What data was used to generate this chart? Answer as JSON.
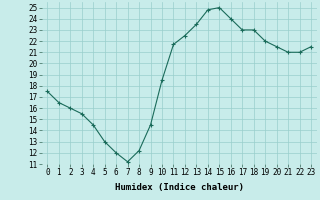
{
  "x": [
    0,
    1,
    2,
    3,
    4,
    5,
    6,
    7,
    8,
    9,
    10,
    11,
    12,
    13,
    14,
    15,
    16,
    17,
    18,
    19,
    20,
    21,
    22,
    23
  ],
  "y": [
    17.5,
    16.5,
    16.0,
    15.5,
    14.5,
    13.0,
    12.0,
    11.2,
    12.2,
    14.5,
    18.5,
    21.7,
    22.5,
    23.5,
    24.8,
    25.0,
    24.0,
    23.0,
    23.0,
    22.0,
    21.5,
    21.0,
    21.0,
    21.5
  ],
  "line_color": "#1a6b5a",
  "marker": "+",
  "bg_color": "#c8ecea",
  "grid_color": "#9acfcc",
  "xlabel": "Humidex (Indice chaleur)",
  "xlim": [
    -0.5,
    23.5
  ],
  "ylim": [
    11,
    25.5
  ],
  "yticks": [
    11,
    12,
    13,
    14,
    15,
    16,
    17,
    18,
    19,
    20,
    21,
    22,
    23,
    24,
    25
  ],
  "xticks": [
    0,
    1,
    2,
    3,
    4,
    5,
    6,
    7,
    8,
    9,
    10,
    11,
    12,
    13,
    14,
    15,
    16,
    17,
    18,
    19,
    20,
    21,
    22,
    23
  ],
  "label_fontsize": 6.5,
  "tick_fontsize": 5.5
}
